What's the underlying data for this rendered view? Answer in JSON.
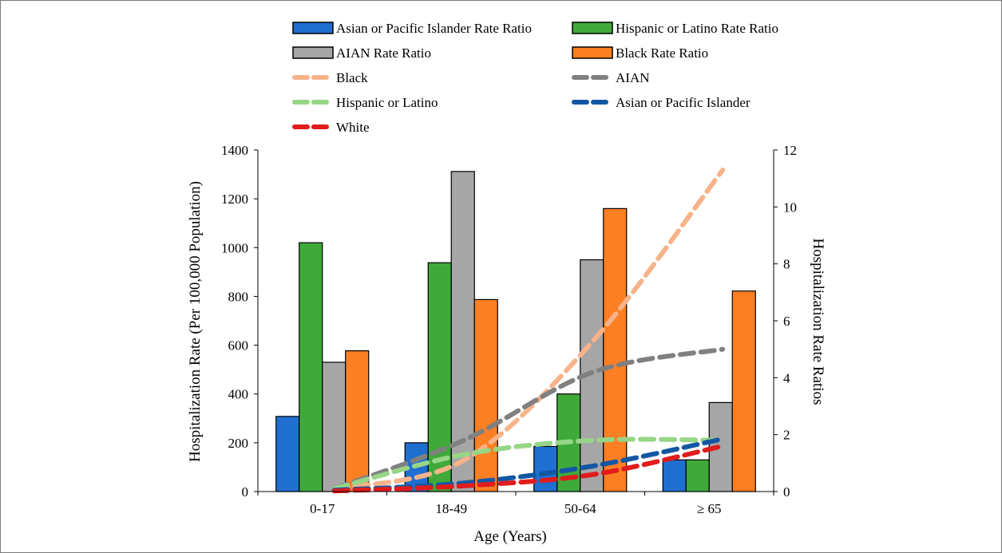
{
  "chart_data": {
    "type": "bar",
    "categories": [
      "0-17",
      "18-49",
      "50-64",
      "≥ 65"
    ],
    "xlabel": "Age (Years)",
    "ylabel": "Hospitalization Rate (Per 100,000 Population)",
    "ylabel_right": "Hospitalization Rate Ratios",
    "ylim": [
      0,
      1400
    ],
    "ylim_right": [
      0,
      12
    ],
    "yticks": [
      "0",
      "200",
      "400",
      "600",
      "800",
      "1000",
      "1200",
      "1400"
    ],
    "yticks_right": [
      "0",
      "2",
      "4",
      "6",
      "8",
      "10",
      "12"
    ],
    "grid": false,
    "legend_placement": "top",
    "bar_series": [
      {
        "name": "Asian or Pacific Islander Rate Ratio",
        "color": "#1f6fd1",
        "values": [
          308,
          200,
          185,
          130
        ]
      },
      {
        "name": "Hispanic or Latino Rate Ratio",
        "color": "#3faa3a",
        "values": [
          1020,
          938,
          400,
          130
        ]
      },
      {
        "name": "AIAN Rate Ratio",
        "color": "#a6a6a6",
        "values": [
          530,
          1312,
          950,
          365
        ]
      },
      {
        "name": "Black Rate Ratio",
        "color": "#fd7f23",
        "values": [
          577,
          787,
          1160,
          822
        ]
      }
    ],
    "line_series": [
      {
        "name": "Black",
        "color": "#f7b38a",
        "axis": "right",
        "values": [
          0.1,
          1.1,
          5.3,
          11.3
        ]
      },
      {
        "name": "AIAN",
        "color": "#808080",
        "axis": "right",
        "values": [
          0.1,
          1.8,
          4.2,
          5.0
        ]
      },
      {
        "name": "Hispanic or Latino",
        "color": "#97d587",
        "axis": "right",
        "values": [
          0.1,
          1.3,
          1.8,
          1.8
        ]
      },
      {
        "name": "Asian or Pacific Islander",
        "color": "#1357a3",
        "axis": "right",
        "values": [
          0.05,
          0.3,
          0.9,
          1.85
        ]
      },
      {
        "name": "White",
        "color": "#e01c1c",
        "axis": "right",
        "values": [
          0.02,
          0.2,
          0.6,
          1.6
        ]
      }
    ]
  }
}
